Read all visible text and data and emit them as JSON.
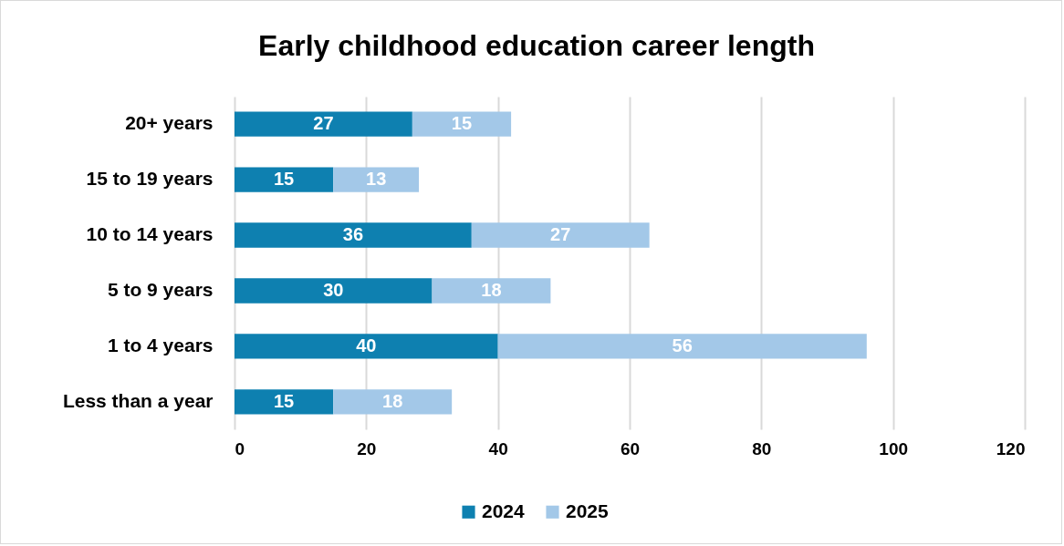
{
  "chart_data": {
    "type": "bar",
    "orientation": "horizontal",
    "stacked": true,
    "title": "Early childhood education career length",
    "categories": [
      "20+ years",
      "15 to 19 years",
      "10 to 14 years",
      "5 to 9 years",
      "1 to 4 years",
      "Less than a year"
    ],
    "series": [
      {
        "name": "2024",
        "color": "#0e80b0",
        "values": [
          27,
          15,
          36,
          30,
          40,
          15
        ]
      },
      {
        "name": "2025",
        "color": "#a3c8e8",
        "values": [
          15,
          13,
          27,
          18,
          56,
          18
        ]
      }
    ],
    "xlim": [
      0,
      120
    ],
    "xticks": [
      0,
      20,
      40,
      60,
      80,
      100,
      120
    ],
    "grid": "x",
    "legend": "bottom",
    "data_labels": true
  }
}
